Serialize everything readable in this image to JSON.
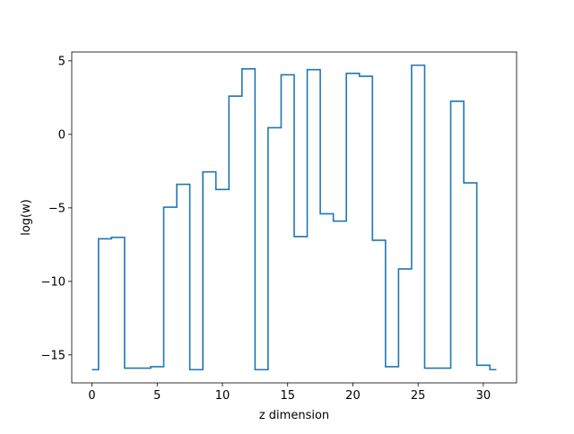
{
  "chart_data": {
    "type": "line",
    "step": "mid",
    "xlabel": "z dimension",
    "ylabel": "log(w)",
    "xlim": [
      -1.55,
      32.55
    ],
    "ylim": [
      -16.9,
      5.6
    ],
    "xticks": [
      0,
      5,
      10,
      15,
      20,
      25,
      30
    ],
    "xtick_labels": [
      "0",
      "5",
      "10",
      "15",
      "20",
      "25",
      "30"
    ],
    "yticks": [
      5,
      0,
      -5,
      -10,
      -15
    ],
    "ytick_labels": [
      "5",
      "0",
      "−5",
      "−10",
      "−15"
    ],
    "grid": false,
    "series": [
      {
        "color": "#1f77b4",
        "x": [
          0,
          1,
          2,
          3,
          4,
          5,
          6,
          7,
          8,
          9,
          10,
          11,
          12,
          13,
          14,
          15,
          16,
          17,
          18,
          19,
          20,
          21,
          22,
          23,
          24,
          25,
          26,
          27,
          28,
          29,
          30,
          31
        ],
        "y": [
          -16.0,
          -7.1,
          -7.0,
          -15.9,
          -15.9,
          -15.8,
          -4.95,
          -3.4,
          -16.0,
          -2.55,
          -3.75,
          2.6,
          4.45,
          -16.0,
          0.45,
          4.05,
          -6.95,
          4.4,
          -5.4,
          -5.9,
          4.15,
          3.95,
          -7.2,
          -15.8,
          -9.15,
          4.7,
          -15.9,
          -15.9,
          2.25,
          -3.3,
          -15.7,
          -16.0
        ]
      }
    ]
  }
}
